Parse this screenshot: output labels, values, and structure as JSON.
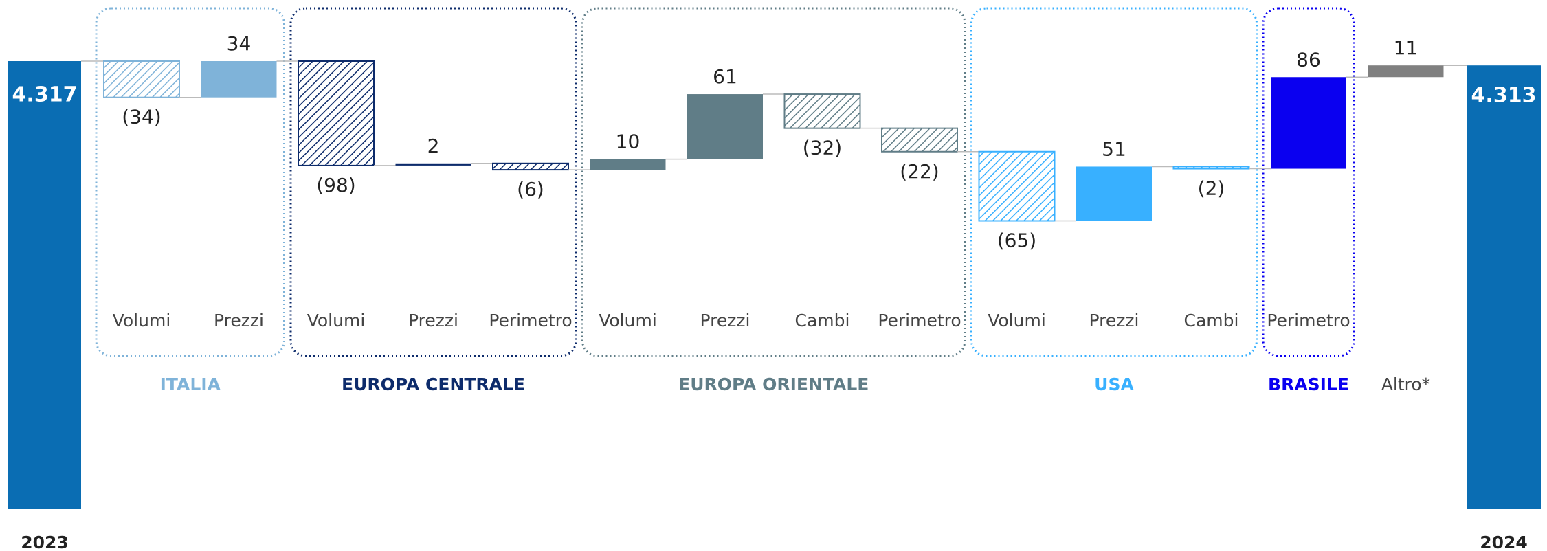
{
  "chart_data": {
    "type": "waterfall",
    "start": {
      "label": "2023",
      "value": 4317,
      "value_label": "4.317",
      "color": "#0a6db3"
    },
    "end": {
      "label": "2024",
      "value": 4313,
      "value_label": "4.313",
      "color": "#0a6db3"
    },
    "groups": [
      {
        "name": "ITALIA",
        "color": "#7fb3d9",
        "categories": [
          "Volumi",
          "Prezzi"
        ],
        "values": [
          -34,
          34
        ],
        "value_labels": [
          "(34)",
          "34"
        ]
      },
      {
        "name": "EUROPA CENTRALE",
        "color": "#0d2b6b",
        "categories": [
          "Volumi",
          "Prezzi",
          "Perimetro"
        ],
        "values": [
          -98,
          2,
          -6
        ],
        "value_labels": [
          "(98)",
          "2",
          "(6)"
        ]
      },
      {
        "name": "EUROPA ORIENTALE",
        "color": "#607d87",
        "categories": [
          "Volumi",
          "Prezzi",
          "Cambi",
          "Perimetro"
        ],
        "values": [
          10,
          61,
          -32,
          -22
        ],
        "value_labels": [
          "10",
          "61",
          "(32)",
          "(22)"
        ]
      },
      {
        "name": "USA",
        "color": "#38b0ff",
        "categories": [
          "Volumi",
          "Prezzi",
          "Cambi"
        ],
        "values": [
          -65,
          51,
          -2
        ],
        "value_labels": [
          "(65)",
          "51",
          "(2)"
        ]
      },
      {
        "name": "BRASILE",
        "color": "#0a00f0",
        "categories": [
          "Perimetro"
        ],
        "values": [
          86
        ],
        "value_labels": [
          "86"
        ]
      }
    ],
    "other": {
      "name": "Altro*",
      "value": 11,
      "color": "#808080"
    }
  }
}
